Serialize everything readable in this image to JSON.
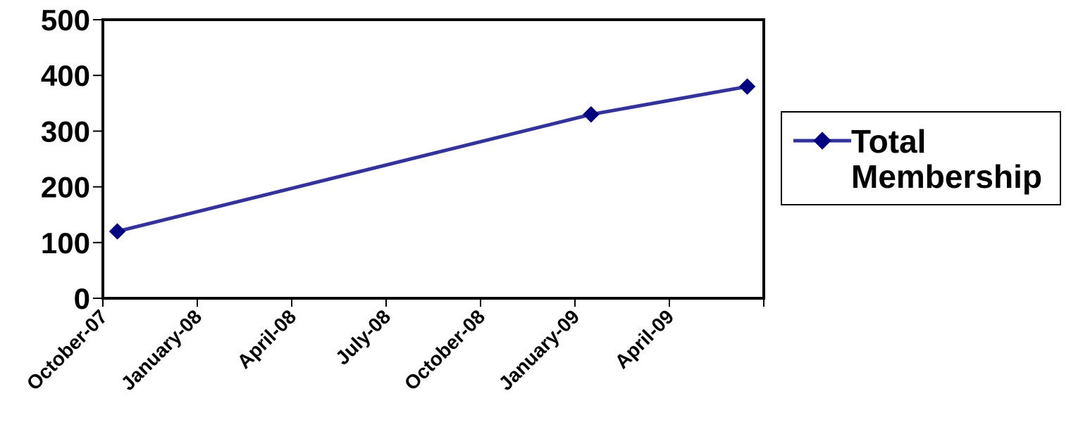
{
  "chart_data": {
    "type": "line",
    "x_ticks": [
      "October-07",
      "January-08",
      "April-08",
      "July-08",
      "October-08",
      "January-09",
      "April-09"
    ],
    "y_ticks": [
      0,
      100,
      200,
      300,
      400,
      500
    ],
    "ylim": [
      0,
      500
    ],
    "xlim": [
      "2007-10-01",
      "2009-07-01"
    ],
    "grid": false,
    "legend_position": "right",
    "series": [
      {
        "name": "Total Membership",
        "color": "#333399",
        "marker_color": "#000080",
        "marker": "diamond",
        "points": [
          {
            "x": "2007-10-15",
            "y": 120
          },
          {
            "x": "2009-01-15",
            "y": 330
          },
          {
            "x": "2009-06-15",
            "y": 380
          }
        ]
      }
    ]
  }
}
